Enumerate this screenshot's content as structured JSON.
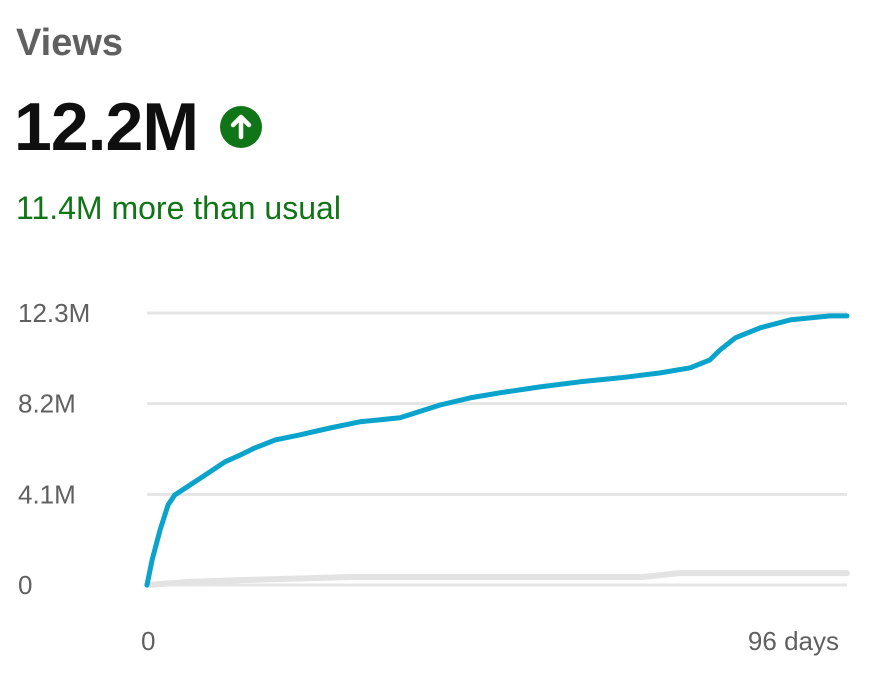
{
  "header": {
    "metric": "Views",
    "value": "12.2M",
    "trend_icon": "arrow-up-circle-icon",
    "delta_text": "11.4M more than usual"
  },
  "colors": {
    "line": "#0aa3cc",
    "typical": "#e3e3e3",
    "positive": "#107516",
    "grid": "#e5e5e5"
  },
  "chart_data": {
    "type": "line",
    "title": "",
    "xlabel": "",
    "ylabel": "",
    "xlim": [
      0,
      96
    ],
    "ylim": [
      0,
      12.3
    ],
    "y_ticks": [
      {
        "value": 0,
        "label": "0"
      },
      {
        "value": 4.1,
        "label": "4.1M"
      },
      {
        "value": 8.2,
        "label": "8.2M"
      },
      {
        "value": 12.3,
        "label": "12.3M"
      }
    ],
    "x_ticks": [
      {
        "value": 0,
        "label": "0"
      },
      {
        "value": 96,
        "label": "96 days"
      }
    ],
    "grid": true,
    "series": [
      {
        "role": "this video",
        "x": [
          0,
          0.7,
          1.8,
          2.9,
          3.8,
          5.9,
          8.0,
          10.7,
          12.8,
          14.8,
          17.6,
          21.0,
          25.1,
          29.2,
          34.7,
          40.2,
          44.3,
          48.4,
          53.9,
          59.4,
          64.9,
          70.4,
          74.5,
          77.2,
          78.6,
          80.7,
          84.1,
          88.2,
          93.7,
          96
        ],
        "y": [
          0,
          1.13,
          2.49,
          3.62,
          4.07,
          4.52,
          4.98,
          5.57,
          5.88,
          6.2,
          6.56,
          6.79,
          7.1,
          7.38,
          7.56,
          8.14,
          8.46,
          8.69,
          8.96,
          9.19,
          9.37,
          9.59,
          9.82,
          10.18,
          10.63,
          11.18,
          11.63,
          11.99,
          12.17,
          12.17
        ]
      },
      {
        "role": "typical",
        "x": [
          0,
          5.9,
          14,
          28,
          68,
          73,
          96
        ],
        "y": [
          0,
          0.14,
          0.23,
          0.36,
          0.36,
          0.54,
          0.54
        ]
      }
    ]
  }
}
